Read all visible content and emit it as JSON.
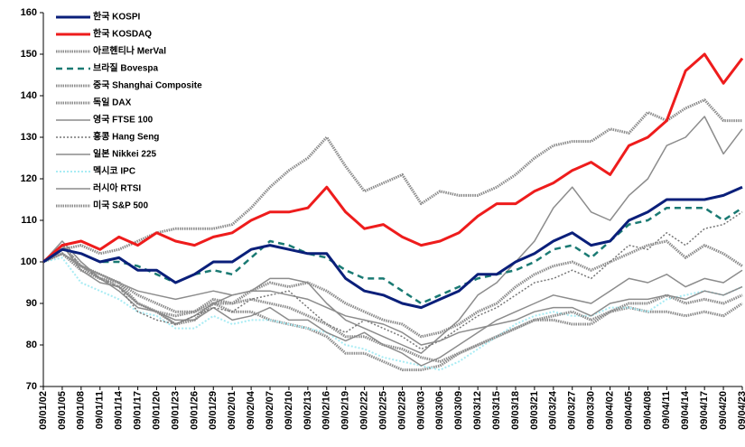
{
  "chart_data": {
    "type": "line",
    "categories": [
      "09/01/02",
      "09/01/05",
      "09/01/08",
      "09/01/11",
      "09/01/14",
      "09/01/17",
      "09/01/20",
      "09/01/23",
      "09/01/26",
      "09/01/29",
      "09/02/01",
      "09/02/04",
      "09/02/07",
      "09/02/10",
      "09/02/13",
      "09/02/16",
      "09/02/19",
      "09/02/22",
      "09/02/25",
      "09/02/28",
      "09/03/03",
      "09/03/06",
      "09/03/09",
      "09/03/12",
      "09/03/15",
      "09/03/18",
      "09/03/21",
      "09/03/24",
      "09/03/27",
      "09/03/30",
      "09/04/02",
      "09/04/05",
      "09/04/08",
      "09/04/11",
      "09/04/14",
      "09/04/17",
      "09/04/20",
      "09/04/23"
    ],
    "ylim": [
      70,
      160
    ],
    "yticks": [
      70,
      80,
      90,
      100,
      110,
      120,
      130,
      140,
      150,
      160
    ],
    "grid": false,
    "legend": "upper left",
    "series": [
      {
        "name": "한국 KOSPI",
        "color": "#0a1f7a",
        "line_style": "solid",
        "width": 3,
        "values": [
          100,
          103,
          102,
          100,
          101,
          98,
          98,
          95,
          97,
          100,
          100,
          103,
          104,
          103,
          102,
          102,
          96,
          93,
          92,
          90,
          89,
          91,
          93,
          97,
          97,
          100,
          102,
          105,
          107,
          104,
          105,
          110,
          112,
          115,
          115,
          115,
          116,
          118
        ]
      },
      {
        "name": "한국 KOSDAQ",
        "color": "#ee1c1c",
        "line_style": "solid",
        "width": 3,
        "values": [
          100,
          104,
          105,
          103,
          106,
          104,
          107,
          105,
          104,
          106,
          107,
          110,
          112,
          112,
          113,
          118,
          112,
          108,
          109,
          106,
          104,
          105,
          107,
          111,
          114,
          114,
          117,
          119,
          122,
          124,
          121,
          128,
          130,
          134,
          146,
          150,
          143,
          149
        ]
      },
      {
        "name": "아르헨티나 MerVal",
        "color": "#8c8c8c",
        "line_style": "double",
        "width": 1.5,
        "values": [
          100,
          104,
          99,
          97,
          95,
          92,
          90,
          88,
          88,
          91,
          90,
          93,
          95,
          94,
          95,
          93,
          90,
          88,
          86,
          85,
          82,
          83,
          85,
          88,
          90,
          94,
          97,
          99,
          100,
          98,
          100,
          102,
          104,
          105,
          101,
          104,
          102,
          99
        ]
      },
      {
        "name": "브라질 Bovespa",
        "color": "#1a7a73",
        "line_style": "dashed",
        "width": 2.5,
        "values": [
          100,
          103,
          102,
          100,
          100,
          99,
          97,
          95,
          97,
          98,
          97,
          101,
          105,
          104,
          102,
          101,
          98,
          96,
          96,
          93,
          90,
          92,
          94,
          96,
          97,
          98,
          100,
          103,
          104,
          101,
          105,
          109,
          110,
          113,
          113,
          113,
          110,
          113
        ]
      },
      {
        "name": "중국 Shanghai Composite",
        "color": "#8c8c8c",
        "line_style": "double",
        "width": 1.5,
        "values": [
          100,
          103,
          104,
          102,
          103,
          105,
          107,
          108,
          108,
          108,
          109,
          113,
          118,
          122,
          125,
          130,
          123,
          117,
          119,
          121,
          114,
          117,
          116,
          116,
          118,
          121,
          125,
          128,
          129,
          129,
          132,
          131,
          136,
          134,
          137,
          139,
          134,
          134
        ]
      },
      {
        "name": "독일 DAX",
        "color": "#8c8c8c",
        "line_style": "double",
        "width": 1.5,
        "values": [
          100,
          102,
          99,
          96,
          94,
          90,
          88,
          87,
          88,
          90,
          90,
          91,
          90,
          89,
          87,
          85,
          82,
          82,
          80,
          79,
          77,
          76,
          78,
          80,
          82,
          84,
          86,
          87,
          88,
          86,
          88,
          90,
          90,
          92,
          90,
          91,
          90,
          92
        ]
      },
      {
        "name": "영국 FTSE 100",
        "color": "#8c8c8c",
        "line_style": "solid",
        "width": 1.5,
        "values": [
          100,
          102,
          99,
          97,
          95,
          93,
          92,
          91,
          92,
          93,
          92,
          93,
          93,
          92,
          91,
          89,
          87,
          86,
          85,
          83,
          80,
          81,
          83,
          84,
          85,
          86,
          88,
          89,
          89,
          87,
          90,
          91,
          91,
          92,
          91,
          93,
          92,
          94
        ]
      },
      {
        "name": "홍콩 Hang Seng",
        "color": "#777777",
        "line_style": "dotted",
        "width": 1.5,
        "values": [
          100,
          104,
          99,
          96,
          94,
          88,
          86,
          85,
          87,
          89,
          88,
          91,
          92,
          93,
          89,
          85,
          83,
          86,
          84,
          82,
          79,
          81,
          84,
          87,
          89,
          92,
          95,
          96,
          98,
          96,
          100,
          104,
          103,
          107,
          104,
          108,
          109,
          112
        ]
      },
      {
        "name": "일본 Nikkei 225",
        "color": "#8c8c8c",
        "line_style": "solid",
        "width": 1.5,
        "values": [
          100,
          104,
          98,
          95,
          94,
          90,
          88,
          86,
          86,
          89,
          86,
          87,
          89,
          86,
          86,
          83,
          81,
          83,
          80,
          78,
          75,
          77,
          80,
          83,
          86,
          88,
          90,
          92,
          91,
          90,
          93,
          96,
          95,
          97,
          94,
          96,
          95,
          98
        ]
      },
      {
        "name": "멕시코 IPC",
        "color": "#a8ecf4",
        "line_style": "dotted",
        "width": 2,
        "values": [
          100,
          101,
          95,
          93,
          91,
          88,
          87,
          84,
          84,
          87,
          85,
          86,
          86,
          85,
          84,
          83,
          80,
          79,
          77,
          76,
          75,
          74,
          76,
          79,
          82,
          85,
          87,
          88,
          87,
          87,
          89,
          89,
          88,
          91,
          92,
          93,
          92,
          94
        ]
      },
      {
        "name": "러시아 RTSI",
        "color": "#8c8c8c",
        "line_style": "solid",
        "width": 1.5,
        "values": [
          100,
          105,
          100,
          96,
          93,
          89,
          88,
          85,
          87,
          90,
          92,
          93,
          96,
          96,
          95,
          90,
          86,
          84,
          82,
          80,
          78,
          82,
          86,
          92,
          95,
          100,
          105,
          113,
          118,
          112,
          110,
          116,
          120,
          128,
          130,
          135,
          126,
          132
        ]
      },
      {
        "name": "미국 S&P 500",
        "color": "#8c8c8c",
        "line_style": "double",
        "width": 1.5,
        "values": [
          100,
          102,
          98,
          96,
          95,
          90,
          88,
          85,
          86,
          90,
          88,
          88,
          86,
          85,
          84,
          82,
          78,
          78,
          76,
          74,
          74,
          75,
          78,
          80,
          82,
          84,
          86,
          86,
          85,
          85,
          88,
          89,
          88,
          88,
          87,
          88,
          87,
          90
        ]
      }
    ]
  }
}
